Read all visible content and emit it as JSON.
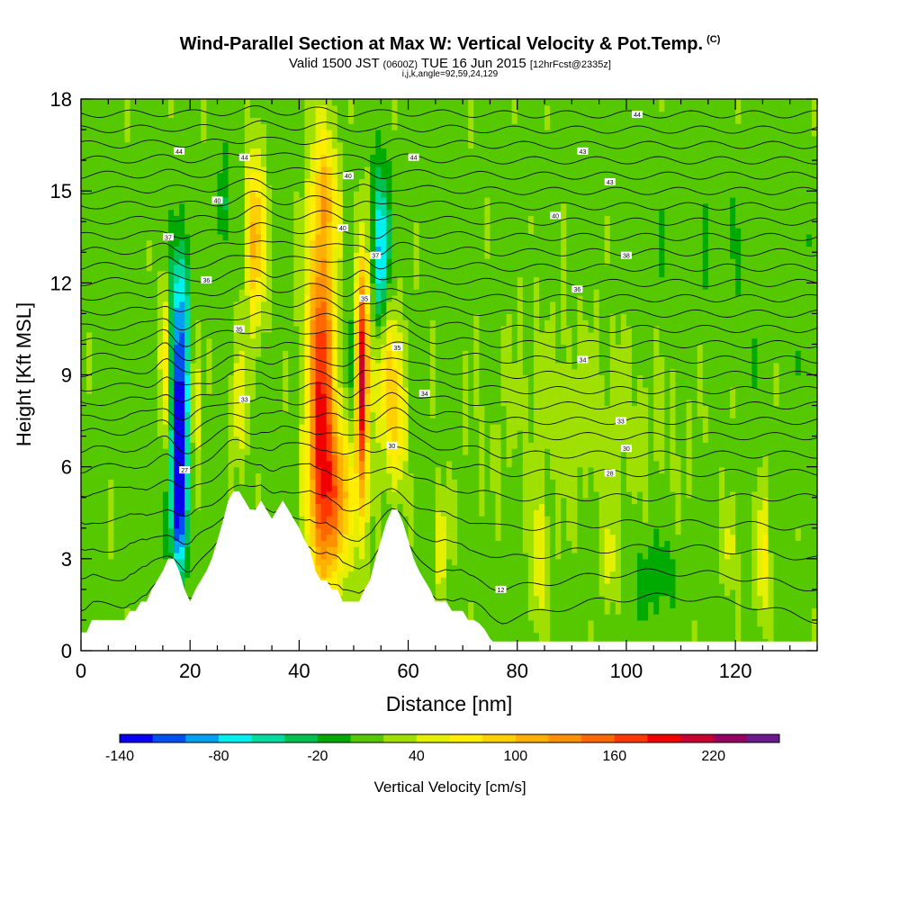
{
  "header": {
    "title": "Wind-Parallel Section at Max W: Vertical Velocity & Pot.Temp.",
    "copyright": "(C)",
    "valid_prefix": "Valid 1500 JST",
    "valid_utc": "(0600Z)",
    "valid_date": "TUE 16 Jun 2015",
    "forecast": "[12hrFcst@2335z]",
    "indices": "i,j,k,angle=92,59,24,129"
  },
  "chart_data": {
    "type": "heatmap",
    "xlabel": "Distance [nm]",
    "ylabel": "Height [Kft MSL]",
    "xlim": [
      0,
      135
    ],
    "ylim": [
      0,
      18
    ],
    "x_ticks": [
      0,
      20,
      40,
      60,
      80,
      100,
      120
    ],
    "y_ticks": [
      0,
      3,
      6,
      9,
      12,
      15,
      18
    ],
    "terrain": [
      [
        0,
        0.6
      ],
      [
        1,
        0.6
      ],
      [
        2,
        1.0
      ],
      [
        8,
        1.0
      ],
      [
        9,
        1.3
      ],
      [
        10,
        1.3
      ],
      [
        11,
        1.6
      ],
      [
        12,
        1.6
      ],
      [
        13,
        2.0
      ],
      [
        14,
        2.3
      ],
      [
        15,
        2.6
      ],
      [
        16,
        3.0
      ],
      [
        17,
        3.0
      ],
      [
        18,
        2.6
      ],
      [
        19,
        2.0
      ],
      [
        20,
        1.6
      ],
      [
        21,
        2.0
      ],
      [
        22,
        2.3
      ],
      [
        23,
        2.6
      ],
      [
        24,
        3.0
      ],
      [
        25,
        3.6
      ],
      [
        26,
        4.2
      ],
      [
        27,
        4.9
      ],
      [
        28,
        5.2
      ],
      [
        29,
        5.2
      ],
      [
        30,
        4.9
      ],
      [
        31,
        4.6
      ],
      [
        32,
        4.6
      ],
      [
        33,
        4.9
      ],
      [
        34,
        4.6
      ],
      [
        35,
        4.3
      ],
      [
        36,
        4.6
      ],
      [
        37,
        4.9
      ],
      [
        38,
        4.6
      ],
      [
        39,
        4.3
      ],
      [
        40,
        4.0
      ],
      [
        41,
        3.6
      ],
      [
        42,
        3.3
      ],
      [
        43,
        2.6
      ],
      [
        44,
        2.3
      ],
      [
        45,
        2.3
      ],
      [
        46,
        2.0
      ],
      [
        47,
        2.0
      ],
      [
        48,
        1.6
      ],
      [
        49,
        1.6
      ],
      [
        50,
        1.6
      ],
      [
        51,
        1.6
      ],
      [
        52,
        2.0
      ],
      [
        53,
        2.3
      ],
      [
        54,
        3.0
      ],
      [
        55,
        3.6
      ],
      [
        56,
        4.2
      ],
      [
        57,
        4.6
      ],
      [
        58,
        4.6
      ],
      [
        59,
        4.2
      ],
      [
        60,
        3.6
      ],
      [
        61,
        3.0
      ],
      [
        62,
        2.6
      ],
      [
        63,
        2.3
      ],
      [
        64,
        2.0
      ],
      [
        65,
        1.6
      ],
      [
        66,
        1.6
      ],
      [
        67,
        1.6
      ],
      [
        68,
        1.3
      ],
      [
        70,
        1.3
      ],
      [
        71,
        1.0
      ],
      [
        72,
        1.0
      ],
      [
        73,
        0.9
      ],
      [
        74,
        0.7
      ],
      [
        75,
        0.4
      ],
      [
        76,
        0.2
      ],
      [
        77,
        0
      ],
      [
        135,
        0
      ]
    ],
    "data_top_height": 0.3,
    "colorbar": {
      "label": "Vertical Velocity [cm/s]",
      "ticks": [
        -140,
        -80,
        -20,
        40,
        100,
        160,
        220
      ],
      "levels": [
        -140,
        -120,
        -100,
        -80,
        -60,
        -40,
        -20,
        0,
        20,
        40,
        60,
        80,
        100,
        120,
        140,
        160,
        180,
        200,
        220,
        240
      ],
      "colors": [
        "#0a00f0",
        "#0050f0",
        "#00a0f0",
        "#00f0f0",
        "#00dca0",
        "#00c050",
        "#00aa00",
        "#55c800",
        "#a0e000",
        "#e4f000",
        "#ffee00",
        "#ffd000",
        "#ffb000",
        "#ff9000",
        "#ff6800",
        "#ff3800",
        "#f00000",
        "#c80030",
        "#960060",
        "#6a1a8a"
      ]
    },
    "features": [
      {
        "x": 18,
        "y": 7.5,
        "sx": 1.2,
        "sy": 2.4,
        "w": -150
      },
      {
        "x": 18,
        "y": 4.2,
        "sx": 1.0,
        "sy": 1.2,
        "w": -90
      },
      {
        "x": 18,
        "y": 11.5,
        "sx": 1.5,
        "sy": 1.6,
        "w": -60
      },
      {
        "x": 15.5,
        "y": 9.5,
        "sx": 0.8,
        "sy": 2.0,
        "w": 70
      },
      {
        "x": 21,
        "y": 8,
        "sx": 0.8,
        "sy": 2.0,
        "w": 40
      },
      {
        "x": 26,
        "y": 14.5,
        "sx": 0.8,
        "sy": 1.0,
        "w": -40
      },
      {
        "x": 32,
        "y": 13.5,
        "sx": 1.3,
        "sy": 2.0,
        "w": 95
      },
      {
        "x": 29,
        "y": 8,
        "sx": 1.2,
        "sy": 1.5,
        "w": 40
      },
      {
        "x": 44,
        "y": 8.5,
        "sx": 1.8,
        "sy": 4.5,
        "w": 165
      },
      {
        "x": 47,
        "y": 5,
        "sx": 2.5,
        "sy": 1.8,
        "w": 95
      },
      {
        "x": 51.5,
        "y": 9,
        "sx": 0.8,
        "sy": 2.8,
        "w": 185
      },
      {
        "x": 49.5,
        "y": 9,
        "sx": 0.8,
        "sy": 1.6,
        "w": -30
      },
      {
        "x": 55,
        "y": 13,
        "sx": 1.0,
        "sy": 1.8,
        "w": -110
      },
      {
        "x": 56,
        "y": 9,
        "sx": 1.8,
        "sy": 1.8,
        "w": 70
      },
      {
        "x": 45,
        "y": 15,
        "sx": 1.5,
        "sy": 1.2,
        "w": 50
      },
      {
        "x": 58,
        "y": 7,
        "sx": 1.2,
        "sy": 1.5,
        "w": 50
      },
      {
        "x": 66,
        "y": 3.5,
        "sx": 0.8,
        "sy": 1.2,
        "w": 50
      },
      {
        "x": 84,
        "y": 3,
        "sx": 1.0,
        "sy": 1.5,
        "w": 50
      },
      {
        "x": 105,
        "y": 2.5,
        "sx": 3.0,
        "sy": 1.0,
        "w": -25
      },
      {
        "x": 97,
        "y": 3,
        "sx": 1.0,
        "sy": 1.0,
        "w": 40
      },
      {
        "x": 125,
        "y": 3,
        "sx": 0.8,
        "sy": 1.5,
        "w": 60
      },
      {
        "x": 119,
        "y": 3.5,
        "sx": 0.8,
        "sy": 1.0,
        "w": 40
      },
      {
        "x": 94,
        "y": 8,
        "sx": 14,
        "sy": 2.5,
        "w": 18
      },
      {
        "x": 115,
        "y": 12,
        "sx": 14,
        "sy": 3.0,
        "w": -8
      }
    ],
    "contour_heights": [
      1.0,
      2.0,
      3.0,
      4.0,
      5.0,
      5.8,
      6.4,
      7.0,
      7.5,
      8.0,
      8.5,
      9.0,
      9.5,
      10.0,
      10.5,
      11.0,
      11.5,
      12.0,
      12.5,
      13.0,
      13.5,
      14.0,
      14.5,
      15.0,
      15.5,
      16.0,
      16.5,
      17.0,
      17.5
    ],
    "contour_labels": [
      {
        "x": 30,
        "y": 16.1,
        "text": "44"
      },
      {
        "x": 18,
        "y": 16.3,
        "text": "44"
      },
      {
        "x": 61,
        "y": 16.1,
        "text": "44"
      },
      {
        "x": 102,
        "y": 17.5,
        "text": "44"
      },
      {
        "x": 92,
        "y": 16.3,
        "text": "43"
      },
      {
        "x": 97,
        "y": 15.3,
        "text": "43"
      },
      {
        "x": 25,
        "y": 14.7,
        "text": "40"
      },
      {
        "x": 49,
        "y": 15.5,
        "text": "40"
      },
      {
        "x": 48,
        "y": 13.8,
        "text": "40"
      },
      {
        "x": 87,
        "y": 14.2,
        "text": "40"
      },
      {
        "x": 16,
        "y": 13.5,
        "text": "37"
      },
      {
        "x": 54,
        "y": 12.9,
        "text": "37"
      },
      {
        "x": 100,
        "y": 12.9,
        "text": "38"
      },
      {
        "x": 23,
        "y": 12.1,
        "text": "36"
      },
      {
        "x": 91,
        "y": 11.8,
        "text": "36"
      },
      {
        "x": 52,
        "y": 11.5,
        "text": "35"
      },
      {
        "x": 29,
        "y": 10.5,
        "text": "35"
      },
      {
        "x": 58,
        "y": 9.9,
        "text": "35"
      },
      {
        "x": 92,
        "y": 9.5,
        "text": "34"
      },
      {
        "x": 63,
        "y": 8.4,
        "text": "34"
      },
      {
        "x": 30,
        "y": 8.2,
        "text": "33"
      },
      {
        "x": 99,
        "y": 7.5,
        "text": "33"
      },
      {
        "x": 57,
        "y": 6.7,
        "text": "30"
      },
      {
        "x": 100,
        "y": 6.6,
        "text": "30"
      },
      {
        "x": 19,
        "y": 5.9,
        "text": "27"
      },
      {
        "x": 97,
        "y": 5.8,
        "text": "28"
      },
      {
        "x": 77,
        "y": 2.0,
        "text": "12"
      }
    ]
  }
}
